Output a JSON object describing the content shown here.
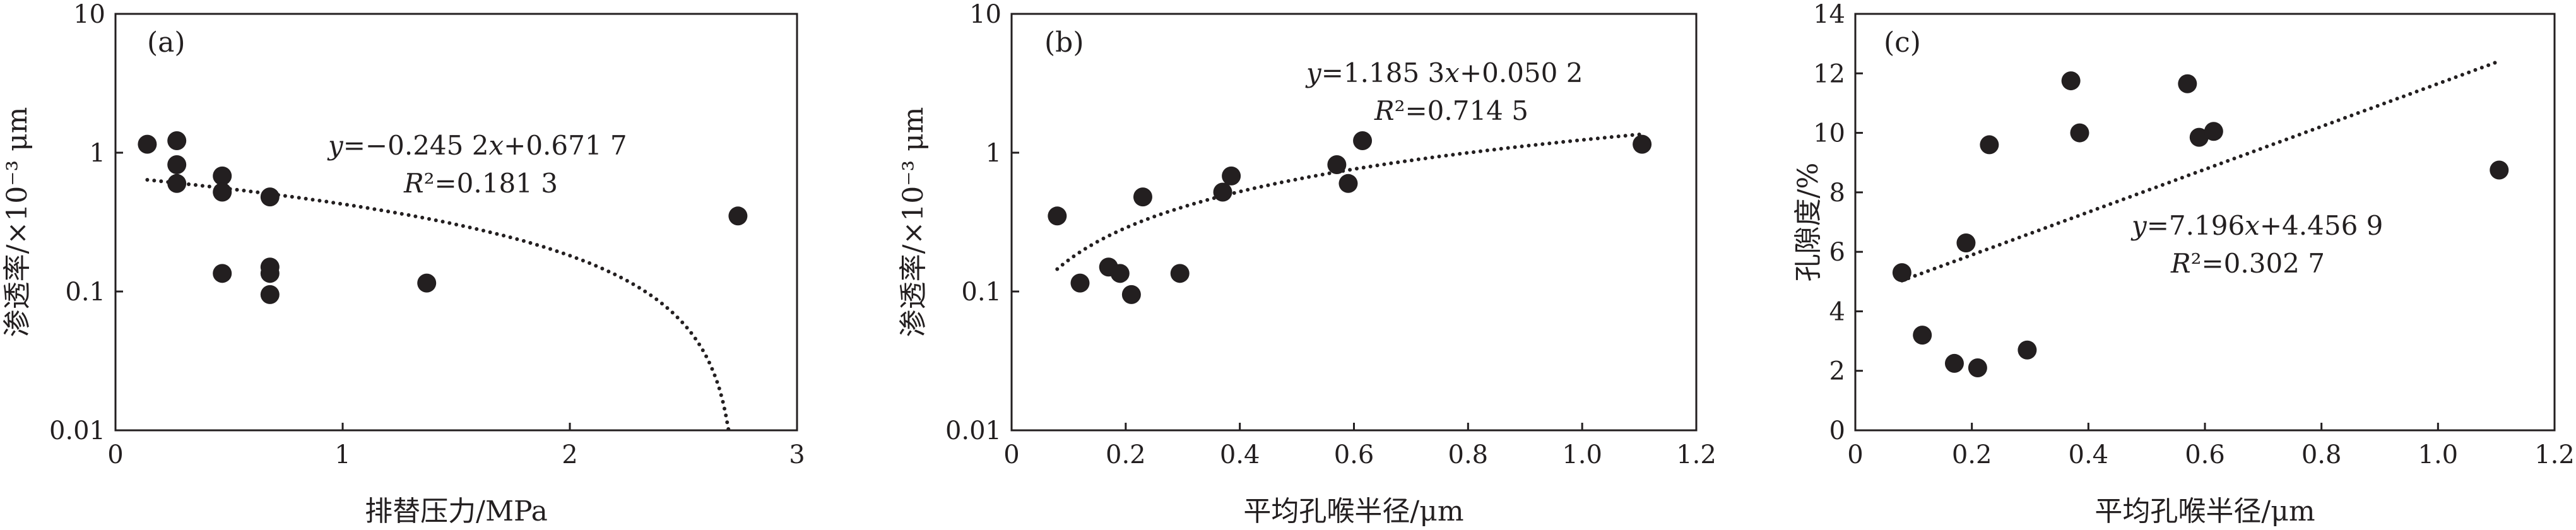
{
  "chart_data": [
    {
      "type": "scatter",
      "panel_label": "(a)",
      "xlabel": "排替压力/MPa",
      "ylabel": "渗透率/×10⁻³ μm",
      "xlim": [
        0,
        3
      ],
      "ylim": [
        0.01,
        10
      ],
      "y_scale": "log",
      "xticks": [
        0,
        1,
        2,
        3
      ],
      "xtick_labels": [
        "0",
        "1",
        "2",
        "3"
      ],
      "yticks": [
        0.01,
        0.1,
        1,
        10
      ],
      "ytick_labels": [
        "0.01",
        "0.1",
        "1",
        "10"
      ],
      "points": [
        {
          "x": 0.14,
          "y": 1.15
        },
        {
          "x": 0.27,
          "y": 1.22
        },
        {
          "x": 0.27,
          "y": 0.82
        },
        {
          "x": 0.27,
          "y": 0.6
        },
        {
          "x": 0.47,
          "y": 0.68
        },
        {
          "x": 0.47,
          "y": 0.52
        },
        {
          "x": 0.47,
          "y": 0.135
        },
        {
          "x": 0.68,
          "y": 0.48
        },
        {
          "x": 0.68,
          "y": 0.15
        },
        {
          "x": 0.68,
          "y": 0.135
        },
        {
          "x": 0.68,
          "y": 0.095
        },
        {
          "x": 1.37,
          "y": 0.115
        },
        {
          "x": 2.74,
          "y": 0.35
        }
      ],
      "trendline": {
        "form": "linear",
        "slope": -0.2452,
        "intercept": 0.6717,
        "x_range": [
          0.14,
          2.71
        ]
      },
      "annotations": {
        "equation": [
          "y",
          "=−0.245 2",
          "x",
          "+0.671 7"
        ],
        "r2": [
          "R",
          "²=0.181 3"
        ]
      }
    },
    {
      "type": "scatter",
      "panel_label": "(b)",
      "xlabel": "平均孔喉半径/μm",
      "ylabel": "渗透率/×10⁻³ μm",
      "xlim": [
        0,
        1.2
      ],
      "ylim": [
        0.01,
        10
      ],
      "y_scale": "log",
      "xticks": [
        0,
        0.2,
        0.4,
        0.6,
        0.8,
        1.0,
        1.2
      ],
      "xtick_labels": [
        "0",
        "0.2",
        "0.4",
        "0.6",
        "0.8",
        "1.0",
        "1.2"
      ],
      "yticks": [
        0.01,
        0.1,
        1,
        10
      ],
      "ytick_labels": [
        "0.01",
        "0.1",
        "1",
        "10"
      ],
      "points": [
        {
          "x": 0.08,
          "y": 0.35
        },
        {
          "x": 0.12,
          "y": 0.115
        },
        {
          "x": 0.17,
          "y": 0.15
        },
        {
          "x": 0.19,
          "y": 0.135
        },
        {
          "x": 0.21,
          "y": 0.095
        },
        {
          "x": 0.23,
          "y": 0.48
        },
        {
          "x": 0.295,
          "y": 0.135
        },
        {
          "x": 0.37,
          "y": 0.52
        },
        {
          "x": 0.385,
          "y": 0.68
        },
        {
          "x": 0.57,
          "y": 0.82
        },
        {
          "x": 0.59,
          "y": 0.6
        },
        {
          "x": 0.615,
          "y": 1.22
        },
        {
          "x": 1.105,
          "y": 1.15
        }
      ],
      "trendline": {
        "form": "linear",
        "slope": 1.1853,
        "intercept": 0.0502,
        "x_range": [
          0.08,
          1.105
        ]
      },
      "annotations": {
        "equation": [
          "y",
          "=1.185 3",
          "x",
          "+0.050 2"
        ],
        "r2": [
          "R",
          "²=0.714 5"
        ]
      }
    },
    {
      "type": "scatter",
      "panel_label": "(c)",
      "xlabel": "平均孔喉半径/μm",
      "ylabel": "孔隙度/%",
      "xlim": [
        0,
        1.2
      ],
      "ylim": [
        0,
        14
      ],
      "y_scale": "linear",
      "xticks": [
        0,
        0.2,
        0.4,
        0.6,
        0.8,
        1.0,
        1.2
      ],
      "xtick_labels": [
        "0",
        "0.2",
        "0.4",
        "0.6",
        "0.8",
        "1.0",
        "1.2"
      ],
      "yticks": [
        0,
        2,
        4,
        6,
        8,
        10,
        12,
        14
      ],
      "ytick_labels": [
        "0",
        "2",
        "4",
        "6",
        "8",
        "10",
        "12",
        "14"
      ],
      "points": [
        {
          "x": 0.08,
          "y": 5.3
        },
        {
          "x": 0.115,
          "y": 3.2
        },
        {
          "x": 0.17,
          "y": 2.25
        },
        {
          "x": 0.19,
          "y": 6.3
        },
        {
          "x": 0.21,
          "y": 2.1
        },
        {
          "x": 0.23,
          "y": 9.6
        },
        {
          "x": 0.295,
          "y": 2.7
        },
        {
          "x": 0.37,
          "y": 11.75
        },
        {
          "x": 0.385,
          "y": 10.0
        },
        {
          "x": 0.57,
          "y": 11.65
        },
        {
          "x": 0.59,
          "y": 9.85
        },
        {
          "x": 0.615,
          "y": 10.05
        },
        {
          "x": 1.105,
          "y": 8.75
        }
      ],
      "trendline": {
        "form": "linear",
        "slope": 7.196,
        "intercept": 4.4569,
        "x_range": [
          0.08,
          1.105
        ]
      },
      "annotations": {
        "equation": [
          "y",
          "=7.196",
          "x",
          "+4.456 9"
        ],
        "r2": [
          "R",
          "²=0.302 7"
        ]
      }
    }
  ]
}
